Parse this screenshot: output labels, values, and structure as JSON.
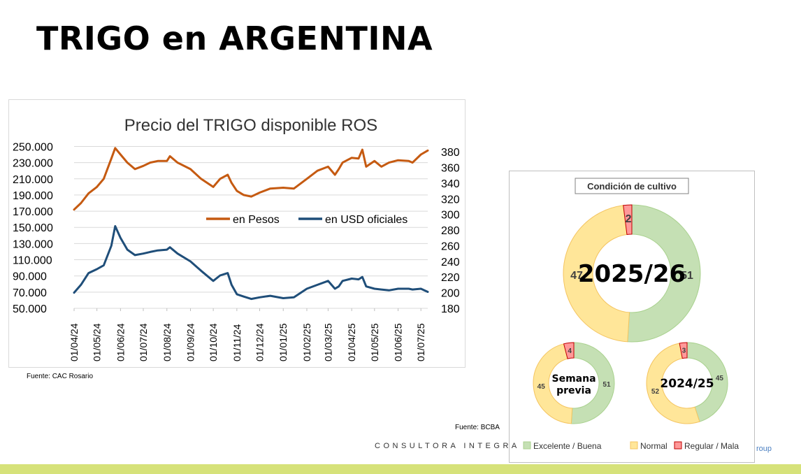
{
  "page_title": "TRIGO en ARGENTINA",
  "chart_data": [
    {
      "type": "line",
      "title": "Precio del TRIGO disponible ROS",
      "xlabel": "",
      "ylabel": "",
      "x_tick_labels": [
        "01/04/24",
        "01/05/24",
        "01/06/24",
        "01/07/24",
        "01/08/24",
        "01/09/24",
        "01/10/24",
        "01/11/24",
        "01/12/24",
        "01/01/25",
        "01/02/25",
        "01/03/25",
        "01/04/25",
        "01/05/25",
        "01/06/25",
        "01/07/25"
      ],
      "y_left_tick_labels": [
        "250.000",
        "230.000",
        "210.000",
        "190.000",
        "170.000",
        "150.000",
        "130.000",
        "110.000",
        "90.000",
        "70.000",
        "50.000"
      ],
      "y_left_ticks": [
        250000,
        230000,
        210000,
        190000,
        170000,
        150000,
        130000,
        110000,
        90000,
        70000,
        50000
      ],
      "y_right_tick_labels": [
        "380",
        "360",
        "340",
        "320",
        "300",
        "280",
        "260",
        "240",
        "220",
        "200",
        "180"
      ],
      "y_right_ticks": [
        380,
        360,
        340,
        320,
        300,
        280,
        260,
        240,
        220,
        200,
        180
      ],
      "ylim_left": [
        50000,
        253000
      ],
      "ylim_right": [
        180,
        390
      ],
      "grid": true,
      "legend_position": "center-right",
      "series": [
        {
          "name": "en Pesos",
          "axis": "left",
          "color": "#c55a11",
          "x": [
            "2024-04-01",
            "2024-04-10",
            "2024-04-20",
            "2024-05-01",
            "2024-05-10",
            "2024-05-20",
            "2024-05-25",
            "2024-06-01",
            "2024-06-10",
            "2024-06-20",
            "2024-07-01",
            "2024-07-10",
            "2024-07-20",
            "2024-08-01",
            "2024-08-05",
            "2024-08-15",
            "2024-09-01",
            "2024-09-15",
            "2024-10-01",
            "2024-10-10",
            "2024-10-20",
            "2024-10-25",
            "2024-11-01",
            "2024-11-10",
            "2024-11-20",
            "2024-12-01",
            "2024-12-15",
            "2025-01-01",
            "2025-01-15",
            "2025-02-01",
            "2025-02-15",
            "2025-03-01",
            "2025-03-10",
            "2025-03-15",
            "2025-03-20",
            "2025-04-01",
            "2025-04-10",
            "2025-04-15",
            "2025-04-20",
            "2025-05-01",
            "2025-05-10",
            "2025-05-20",
            "2025-06-01",
            "2025-06-15",
            "2025-06-20",
            "2025-07-01",
            "2025-07-10"
          ],
          "y": [
            172000,
            180000,
            192000,
            200000,
            210000,
            235000,
            248000,
            240000,
            230000,
            222000,
            226000,
            230000,
            232000,
            232000,
            238000,
            230000,
            222000,
            210000,
            200000,
            210000,
            215000,
            205000,
            195000,
            190000,
            188000,
            193000,
            198000,
            199000,
            198000,
            210000,
            220000,
            225000,
            215000,
            222000,
            230000,
            236000,
            235000,
            246000,
            225000,
            232000,
            225000,
            230000,
            233000,
            232000,
            230000,
            240000,
            245000
          ]
        },
        {
          "name": "en USD oficiales",
          "axis": "right",
          "color": "#1f4e79",
          "x": [
            "2024-04-01",
            "2024-04-10",
            "2024-04-20",
            "2024-05-01",
            "2024-05-10",
            "2024-05-20",
            "2024-05-25",
            "2024-06-01",
            "2024-06-10",
            "2024-06-20",
            "2024-07-01",
            "2024-07-10",
            "2024-07-20",
            "2024-08-01",
            "2024-08-05",
            "2024-08-15",
            "2024-09-01",
            "2024-09-15",
            "2024-10-01",
            "2024-10-10",
            "2024-10-20",
            "2024-10-25",
            "2024-11-01",
            "2024-11-10",
            "2024-11-20",
            "2024-12-01",
            "2024-12-15",
            "2025-01-01",
            "2025-01-15",
            "2025-02-01",
            "2025-02-15",
            "2025-03-01",
            "2025-03-10",
            "2025-03-15",
            "2025-03-20",
            "2025-04-01",
            "2025-04-10",
            "2025-04-15",
            "2025-04-20",
            "2025-05-01",
            "2025-05-10",
            "2025-05-20",
            "2025-06-01",
            "2025-06-15",
            "2025-06-20",
            "2025-07-01",
            "2025-07-10"
          ],
          "y": [
            200,
            210,
            225,
            230,
            235,
            260,
            285,
            270,
            255,
            248,
            250,
            252,
            254,
            255,
            258,
            250,
            240,
            228,
            215,
            222,
            225,
            210,
            198,
            195,
            192,
            194,
            196,
            193,
            194,
            205,
            210,
            215,
            205,
            208,
            215,
            218,
            217,
            220,
            208,
            205,
            204,
            203,
            205,
            205,
            204,
            205,
            201
          ]
        }
      ]
    },
    {
      "type": "pie",
      "title": "Condición de cultivo",
      "legend": [
        "Excelente / Buena",
        "Normal",
        "Regular / Mala"
      ],
      "colors": [
        "#c5e0b4",
        "#ffe699",
        "#ff9999"
      ],
      "rings": [
        {
          "label": "2025/26",
          "values": [
            51,
            47,
            2
          ]
        },
        {
          "label_lines": [
            "Semana",
            "previa"
          ],
          "values": [
            51,
            45,
            4
          ]
        },
        {
          "label": "2024/25",
          "values": [
            45,
            52,
            3
          ]
        }
      ]
    }
  ],
  "sources": {
    "left": "Fuente: CAC Rosario",
    "right": "Fuente: BCBA"
  },
  "footer": {
    "brand": "CONSULTORA INTEGRA",
    "fragment": "roup"
  }
}
